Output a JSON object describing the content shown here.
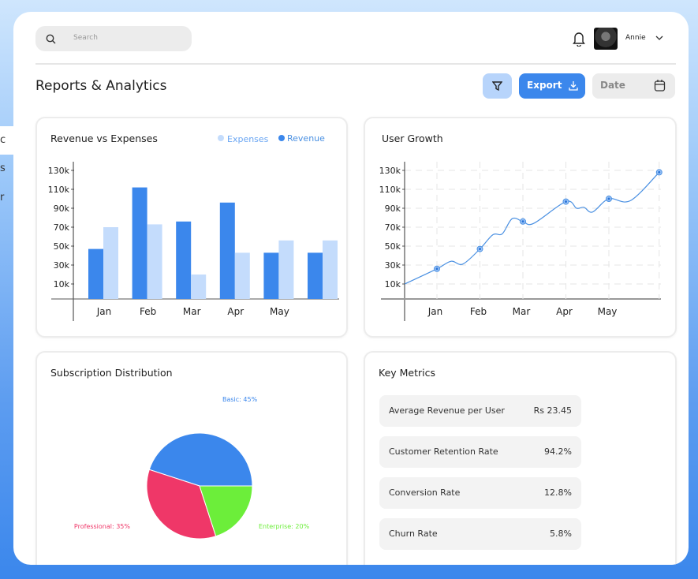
{
  "sidebar": {
    "fragments": [
      "c",
      "s",
      "r"
    ]
  },
  "header": {
    "search_placeholder": "Search",
    "user_name": "Annie"
  },
  "page": {
    "title": "Reports & Analytics",
    "export_label": "Export",
    "date_label": "Date"
  },
  "colors": {
    "accent": "#3b87ec",
    "light_accent": "#c4dcfc",
    "professional": "#ef3768",
    "enterprise": "#6cee3a"
  },
  "chart_data": [
    {
      "type": "bar",
      "title": "Revenue vs Expenses",
      "categories": [
        "Jan",
        "Feb",
        "Mar",
        "Apr",
        "May",
        ""
      ],
      "yticks": [
        "130k",
        "110k",
        "90k",
        "70k",
        "50k",
        "30k",
        "10k"
      ],
      "ylim": [
        0,
        130
      ],
      "legend": [
        "Expenses",
        "Revenue"
      ],
      "legend_placement": "top-right",
      "series": [
        {
          "name": "Revenue",
          "values": [
            47,
            112,
            76,
            96,
            43,
            43
          ]
        },
        {
          "name": "Expenses",
          "values": [
            70,
            73,
            20,
            43,
            56,
            56
          ]
        }
      ]
    },
    {
      "type": "line",
      "title": "User Growth",
      "categories": [
        "Jan",
        "Feb",
        "Mar",
        "Apr",
        "May"
      ],
      "yticks": [
        "130k",
        "110k",
        "90k",
        "70k",
        "50k",
        "30k",
        "10k"
      ],
      "ylim": [
        0,
        130
      ],
      "grid": true,
      "points": [
        {
          "x": 0.25,
          "y": 10
        },
        {
          "x": 1,
          "y": 26,
          "marker": true
        },
        {
          "x": 1.33,
          "y": 34
        },
        {
          "x": 1.6,
          "y": 31
        },
        {
          "x": 2,
          "y": 47,
          "marker": true
        },
        {
          "x": 2.3,
          "y": 62
        },
        {
          "x": 2.52,
          "y": 63
        },
        {
          "x": 2.75,
          "y": 79
        },
        {
          "x": 3,
          "y": 76,
          "marker": true
        },
        {
          "x": 3.25,
          "y": 74
        },
        {
          "x": 4,
          "y": 97,
          "marker": true
        },
        {
          "x": 4.25,
          "y": 90
        },
        {
          "x": 4.42,
          "y": 91
        },
        {
          "x": 4.62,
          "y": 86
        },
        {
          "x": 5,
          "y": 100,
          "marker": true
        },
        {
          "x": 5.5,
          "y": 98
        },
        {
          "x": 6.17,
          "y": 128,
          "marker": true
        }
      ]
    },
    {
      "type": "pie",
      "title": "Subscription Distribution",
      "slices": [
        {
          "label": "Basic: 45%",
          "value": 45,
          "color": "#3b87ec"
        },
        {
          "label": "Professional: 35%",
          "value": 35,
          "color": "#ef3768"
        },
        {
          "label": "Enterprise: 20%",
          "value": 20,
          "color": "#6cee3a"
        }
      ]
    }
  ],
  "metrics": {
    "title": "Key Metrics",
    "items": [
      {
        "label": "Average Revenue per User",
        "value": "Rs 23.45"
      },
      {
        "label": "Customer Retention Rate",
        "value": "94.2%"
      },
      {
        "label": "Conversion Rate",
        "value": "12.8%"
      },
      {
        "label": "Churn Rate",
        "value": "5.8%"
      }
    ]
  }
}
